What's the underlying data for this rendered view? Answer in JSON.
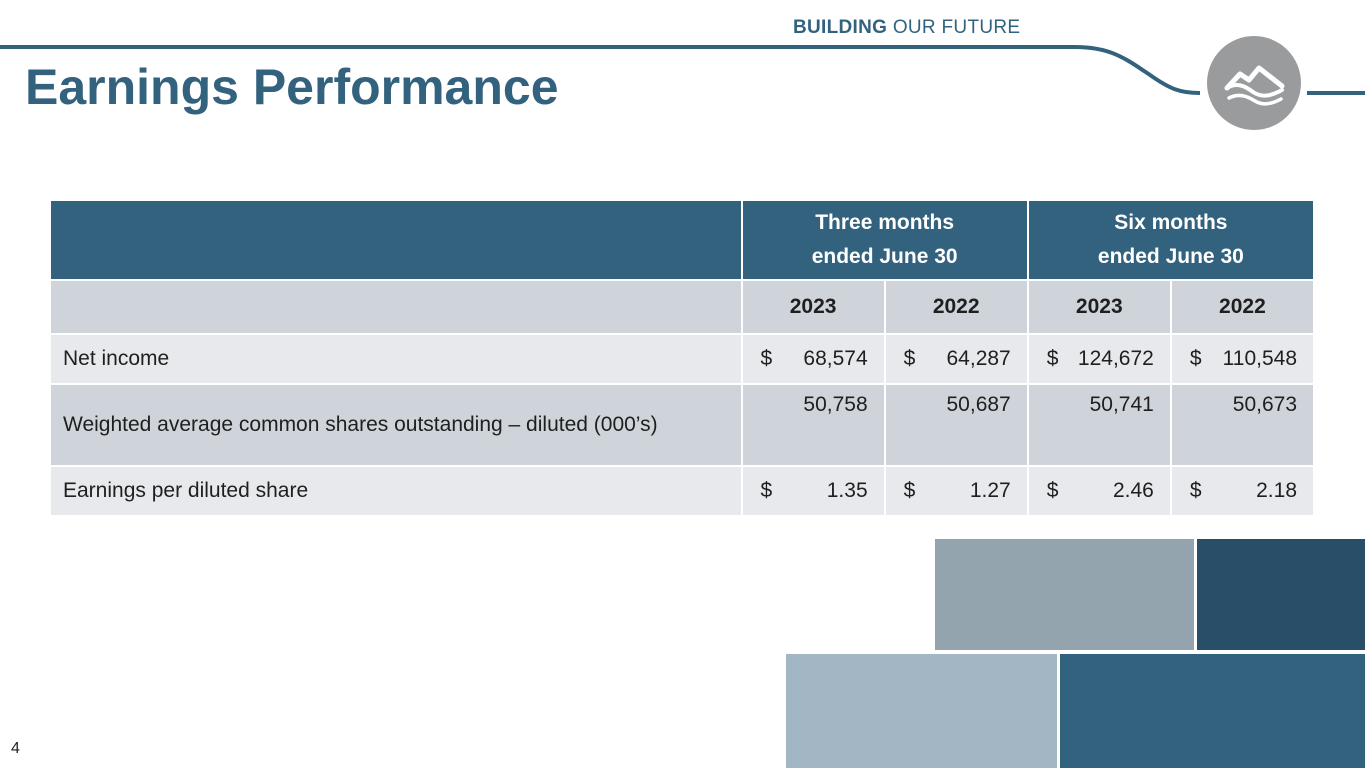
{
  "header": {
    "tagline_bold": "BUILDING",
    "tagline_rest": "OUR FUTURE",
    "logo_icon": "mountain-logo-icon"
  },
  "slide": {
    "title": "Earnings Performance",
    "page_number": "4"
  },
  "table": {
    "group_headers": [
      {
        "line1": "Three months",
        "line2": "ended June 30"
      },
      {
        "line1": "Six months",
        "line2": "ended June 30"
      }
    ],
    "years": [
      "2023",
      "2022",
      "2023",
      "2022"
    ],
    "rows": [
      {
        "label": "Net income",
        "cells": [
          {
            "currency": "$",
            "value": "68,574"
          },
          {
            "currency": "$",
            "value": "64,287"
          },
          {
            "currency": "$",
            "value": "124,672"
          },
          {
            "currency": "$",
            "value": "110,548"
          }
        ]
      },
      {
        "label": "Weighted average common shares outstanding – diluted (000’s)",
        "cells": [
          {
            "currency": "",
            "value": "50,758"
          },
          {
            "currency": "",
            "value": "50,687"
          },
          {
            "currency": "",
            "value": "50,741"
          },
          {
            "currency": "",
            "value": "50,673"
          }
        ]
      },
      {
        "label": "Earnings per diluted share",
        "cells": [
          {
            "currency": "$",
            "value": "1.35"
          },
          {
            "currency": "$",
            "value": "1.27"
          },
          {
            "currency": "$",
            "value": "2.46"
          },
          {
            "currency": "$",
            "value": "2.18"
          }
        ]
      }
    ]
  },
  "colors": {
    "brand_blue": "#33627f",
    "header_row": "#cfd4da",
    "light_row": "#e8e9ec",
    "logo_gray": "#9a9b9d",
    "block_gray": "#94a4ae",
    "block_navy": "#284e68",
    "block_light": "#a2b6c4",
    "block_blue": "#33627f"
  }
}
